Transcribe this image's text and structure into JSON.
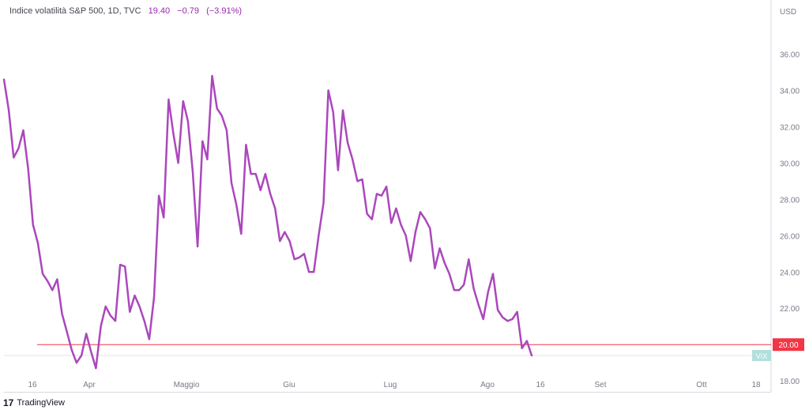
{
  "header": {
    "title": "Indice volatilità S&P 500, 1D, TVC",
    "last": "19.40",
    "change": "−0.79",
    "change_pct": "(−3.91%)"
  },
  "footer": {
    "brand": "TradingView",
    "logo_glyph": "17"
  },
  "colors": {
    "series": "#ab47bc",
    "level_line": "#f23645",
    "axis_text": "#787b86",
    "badge_bg": "#b2dfdb"
  },
  "chart_data": {
    "type": "line",
    "ylabel": "USD",
    "ylim": [
      17.4,
      38.8
    ],
    "y_ticks": [
      "18.00",
      "20.00",
      "22.00",
      "24.00",
      "26.00",
      "28.00",
      "30.00",
      "32.00",
      "34.00",
      "36.00"
    ],
    "x_ticks": [
      "16",
      "Apr",
      "Maggio",
      "Giu",
      "Lug",
      "Ago",
      "16",
      "Set",
      "Ott",
      "18"
    ],
    "level_line": {
      "value": 20.0,
      "label": "20.00"
    },
    "last_value_badge": {
      "value": 19.4,
      "label": "VIX"
    },
    "series": [
      {
        "values": [
          34.6,
          32.9,
          30.3,
          30.8,
          31.8,
          29.7,
          26.6,
          25.6,
          23.9,
          23.5,
          23.0,
          23.6,
          21.7,
          20.7,
          19.7,
          19.0,
          19.4,
          20.6,
          19.6,
          18.7,
          21.0,
          22.1,
          21.6,
          21.3,
          24.4,
          24.3,
          21.8,
          22.7,
          22.1,
          21.3,
          20.3,
          22.6,
          28.2,
          27.0,
          33.5,
          31.6,
          30.0,
          33.4,
          32.3,
          29.5,
          25.4,
          31.2,
          30.2,
          34.8,
          33.0,
          32.6,
          31.8,
          28.9,
          27.7,
          26.1,
          31.0,
          29.4,
          29.4,
          28.5,
          29.4,
          28.3,
          27.5,
          25.7,
          26.2,
          25.7,
          24.7,
          24.8,
          25.0,
          24.0,
          24.0,
          26.0,
          27.8,
          34.0,
          32.8,
          29.6,
          32.9,
          31.1,
          30.2,
          29.0,
          29.1,
          27.2,
          26.9,
          28.3,
          28.2,
          28.7,
          26.7,
          27.5,
          26.6,
          26.0,
          24.6,
          26.2,
          27.3,
          26.9,
          26.4,
          24.2,
          25.3,
          24.5,
          23.9,
          23.0,
          23.0,
          23.3,
          24.7,
          23.1,
          22.2,
          21.4,
          22.9,
          23.9,
          21.9,
          21.5,
          21.3,
          21.4,
          21.8,
          19.8,
          20.2,
          19.4
        ]
      }
    ]
  }
}
